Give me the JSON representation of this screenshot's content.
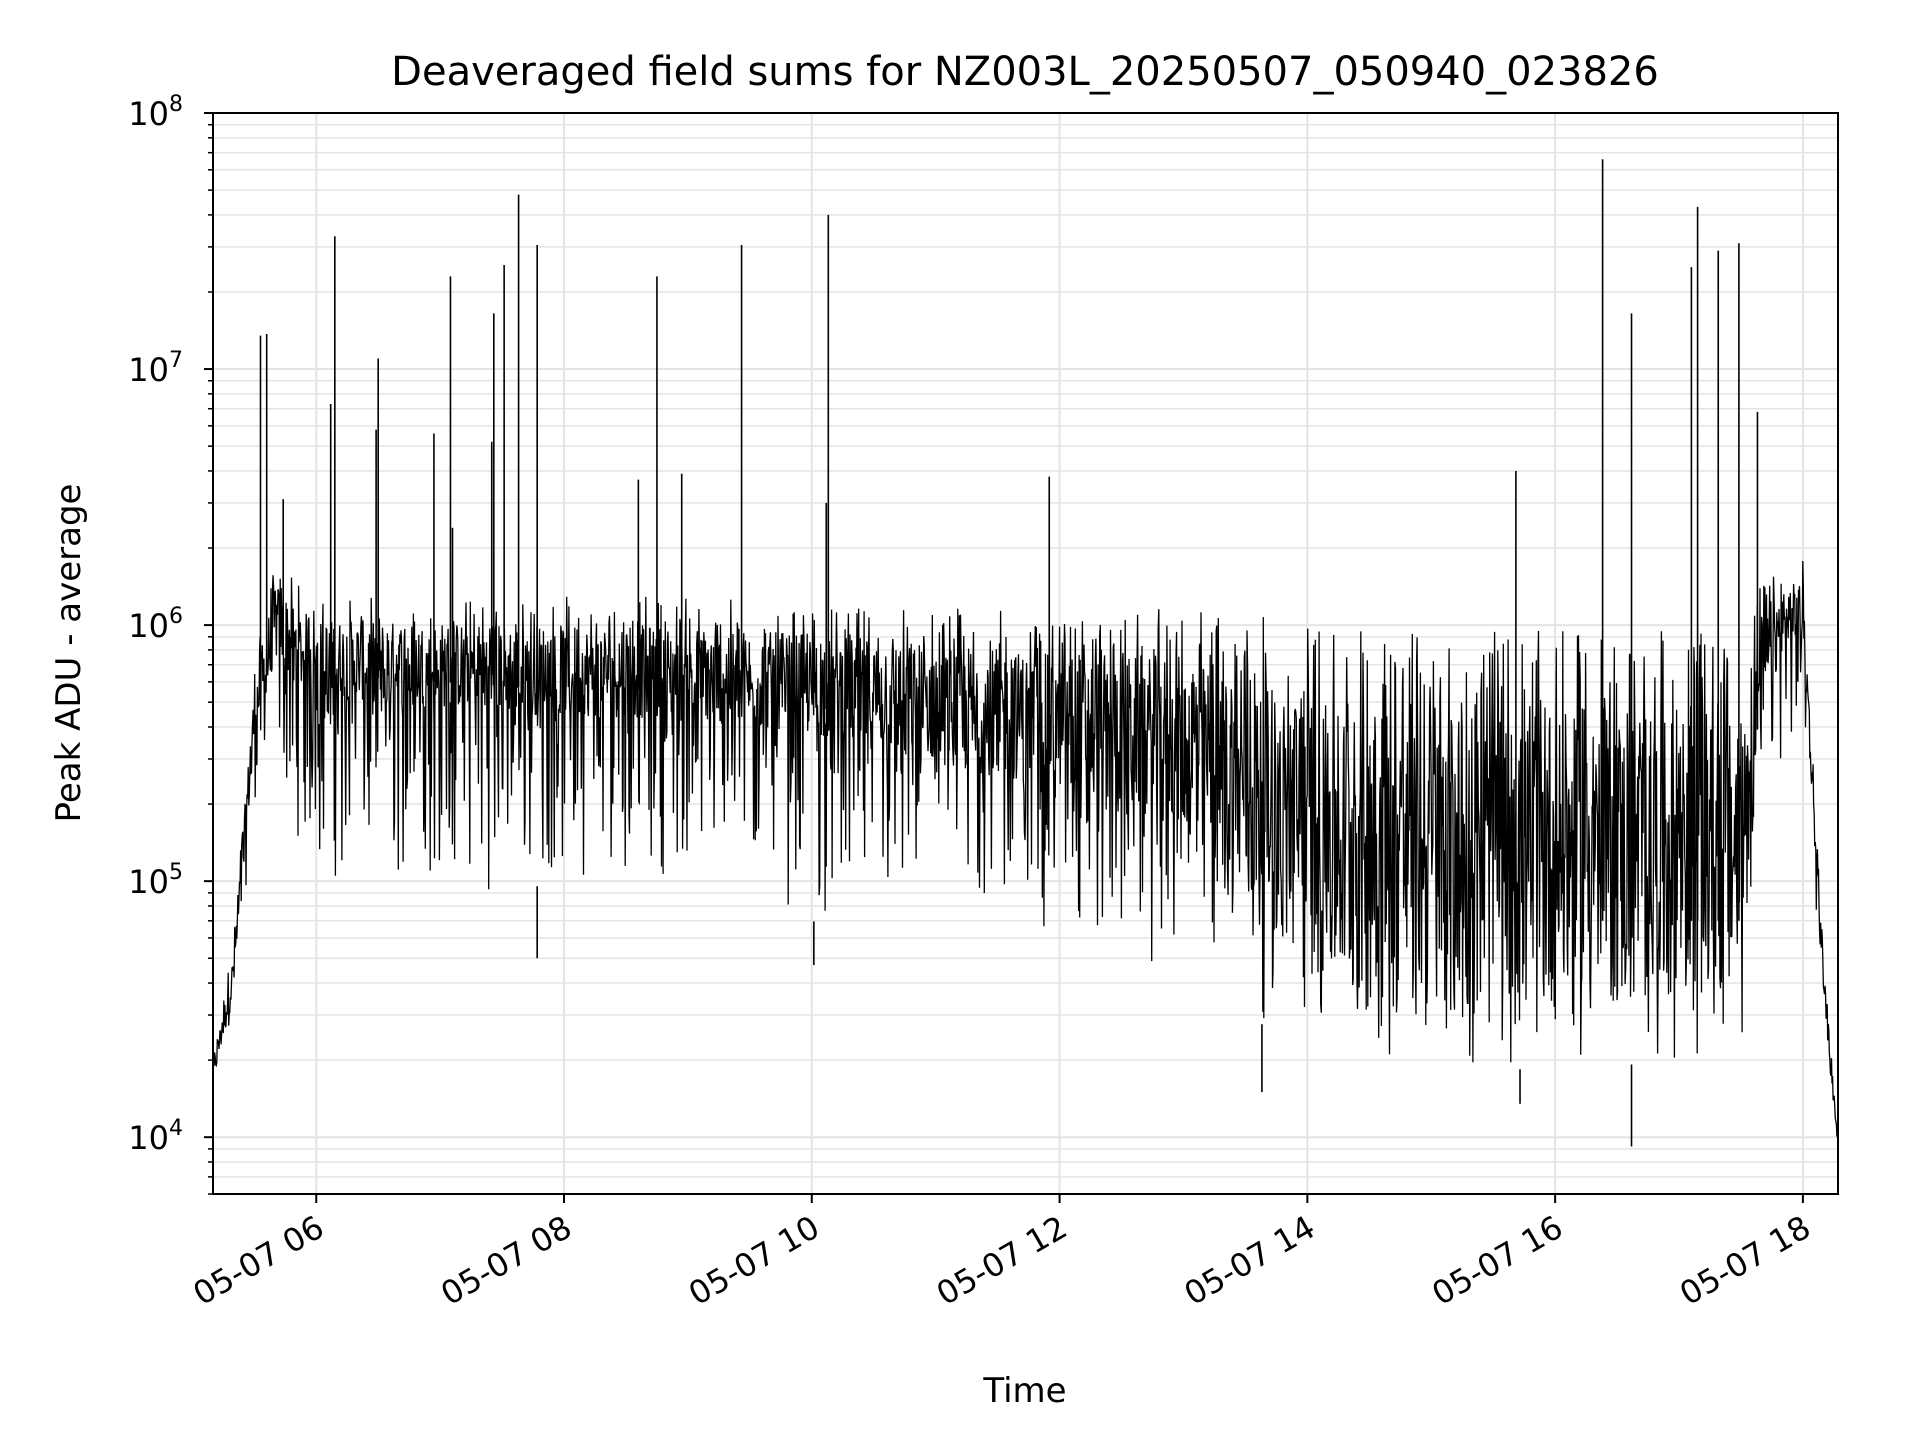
{
  "chart_data": {
    "type": "line",
    "title": "Deaveraged field sums for NZ003L_20250507_050940_023826",
    "xlabel": "Time",
    "ylabel": "Peak ADU - average",
    "yscale": "log",
    "ylim": [
      6000,
      100000000
    ],
    "xlim": [
      "05-07 05:10",
      "05-07 18:17"
    ],
    "grid": true,
    "legend": "none",
    "line_color": "#000000",
    "grid_color": "#e4e4e4",
    "x_ticks": [
      {
        "t": "05-07 06:00",
        "label": "05-07 06"
      },
      {
        "t": "05-07 08:00",
        "label": "05-07 08"
      },
      {
        "t": "05-07 10:00",
        "label": "05-07 10"
      },
      {
        "t": "05-07 12:00",
        "label": "05-07 12"
      },
      {
        "t": "05-07 14:00",
        "label": "05-07 14"
      },
      {
        "t": "05-07 16:00",
        "label": "05-07 16"
      },
      {
        "t": "05-07 18:00",
        "label": "05-07 18"
      }
    ],
    "y_ticks": [
      {
        "value": 10000,
        "base": "10",
        "exp": "4"
      },
      {
        "value": 100000,
        "base": "10",
        "exp": "5"
      },
      {
        "value": 1000000,
        "base": "10",
        "exp": "6"
      },
      {
        "value": 10000000,
        "base": "10",
        "exp": "7"
      },
      {
        "value": 100000000,
        "base": "10",
        "exp": "8"
      }
    ],
    "series": [
      {
        "x": [
          "05-07 05:10",
          "05-07 05:20",
          "05-07 05:30",
          "05-07 05:40",
          "05-07 05:50",
          "05-07 06:00",
          "05-07 06:30",
          "05-07 07:00",
          "05-07 07:30",
          "05-07 08:00",
          "05-07 08:30",
          "05-07 09:00",
          "05-07 09:30",
          "05-07 10:00",
          "05-07 10:30",
          "05-07 11:00",
          "05-07 11:30",
          "05-07 12:00",
          "05-07 12:30",
          "05-07 13:00",
          "05-07 13:30",
          "05-07 14:00",
          "05-07 14:30",
          "05-07 15:00",
          "05-07 15:30",
          "05-07 16:00",
          "05-07 16:30",
          "05-07 17:00",
          "05-07 17:30",
          "05-07 17:40",
          "05-07 17:50",
          "05-07 18:00",
          "05-07 18:10",
          "05-07 18:17"
        ],
        "y": [
          17000,
          40000,
          400000,
          900000,
          700000,
          650000,
          620000,
          600000,
          580000,
          560000,
          560000,
          540000,
          520000,
          480000,
          440000,
          400000,
          360000,
          330000,
          300000,
          260000,
          150000,
          90000,
          70000,
          60000,
          60000,
          70000,
          70000,
          70000,
          70000,
          600000,
          900000,
          1000000,
          40000,
          9000
        ],
        "band_low": [
          17000,
          30000,
          200000,
          300000,
          150000,
          100000,
          90000,
          90000,
          90000,
          100000,
          110000,
          100000,
          90000,
          70000,
          60000,
          60000,
          60000,
          55000,
          50000,
          40000,
          30000,
          22000,
          20000,
          19000,
          18000,
          19000,
          19000,
          20000,
          18000,
          200000,
          300000,
          400000,
          30000,
          9000
        ],
        "band_high": [
          20000,
          60000,
          700000,
          1800000,
          1500000,
          1300000,
          1300000,
          1300000,
          1300000,
          1300000,
          1300000,
          1300000,
          1250000,
          1200000,
          1200000,
          1200000,
          1150000,
          1100000,
          1150000,
          1200000,
          1100000,
          1050000,
          1000000,
          950000,
          950000,
          950000,
          950000,
          950000,
          900000,
          1500000,
          1700000,
          1800000,
          50000,
          10000
        ]
      }
    ],
    "spikes": [
      {
        "t": "05-07 05:33",
        "y": 13500000
      },
      {
        "t": "05-07 05:36",
        "y": 13700000
      },
      {
        "t": "05-07 05:44",
        "y": 3100000
      },
      {
        "t": "05-07 06:07",
        "y": 7300000
      },
      {
        "t": "05-07 06:09",
        "y": 33000000
      },
      {
        "t": "05-07 06:29",
        "y": 5800000
      },
      {
        "t": "05-07 06:30",
        "y": 11000000
      },
      {
        "t": "05-07 06:57",
        "y": 5600000
      },
      {
        "t": "05-07 07:05",
        "y": 23000000
      },
      {
        "t": "05-07 07:06",
        "y": 2400000
      },
      {
        "t": "05-07 07:25",
        "y": 5200000
      },
      {
        "t": "05-07 07:26",
        "y": 16500000
      },
      {
        "t": "05-07 07:31",
        "y": 25500000
      },
      {
        "t": "05-07 07:38",
        "y": 48000000
      },
      {
        "t": "05-07 07:47",
        "y": 30500000
      },
      {
        "t": "05-07 08:36",
        "y": 3700000
      },
      {
        "t": "05-07 08:45",
        "y": 23000000
      },
      {
        "t": "05-07 08:57",
        "y": 3900000
      },
      {
        "t": "05-07 09:26",
        "y": 30500000
      },
      {
        "t": "05-07 10:07",
        "y": 3000000
      },
      {
        "t": "05-07 10:08",
        "y": 40000000
      },
      {
        "t": "05-07 11:55",
        "y": 3800000
      },
      {
        "t": "05-07 15:41",
        "y": 4000000
      },
      {
        "t": "05-07 16:23",
        "y": 66000000
      },
      {
        "t": "05-07 16:37",
        "y": 16500000
      },
      {
        "t": "05-07 17:06",
        "y": 25000000
      },
      {
        "t": "05-07 17:09",
        "y": 43000000
      },
      {
        "t": "05-07 17:19",
        "y": 29000000
      },
      {
        "t": "05-07 17:29",
        "y": 31000000
      },
      {
        "t": "05-07 17:38",
        "y": 6800000
      }
    ],
    "dips": [
      {
        "t": "05-07 07:47",
        "y": 50000
      },
      {
        "t": "05-07 10:01",
        "y": 47000
      },
      {
        "t": "05-07 13:38",
        "y": 15000
      },
      {
        "t": "05-07 15:43",
        "y": 13500
      },
      {
        "t": "05-07 16:37",
        "y": 9200
      }
    ]
  }
}
